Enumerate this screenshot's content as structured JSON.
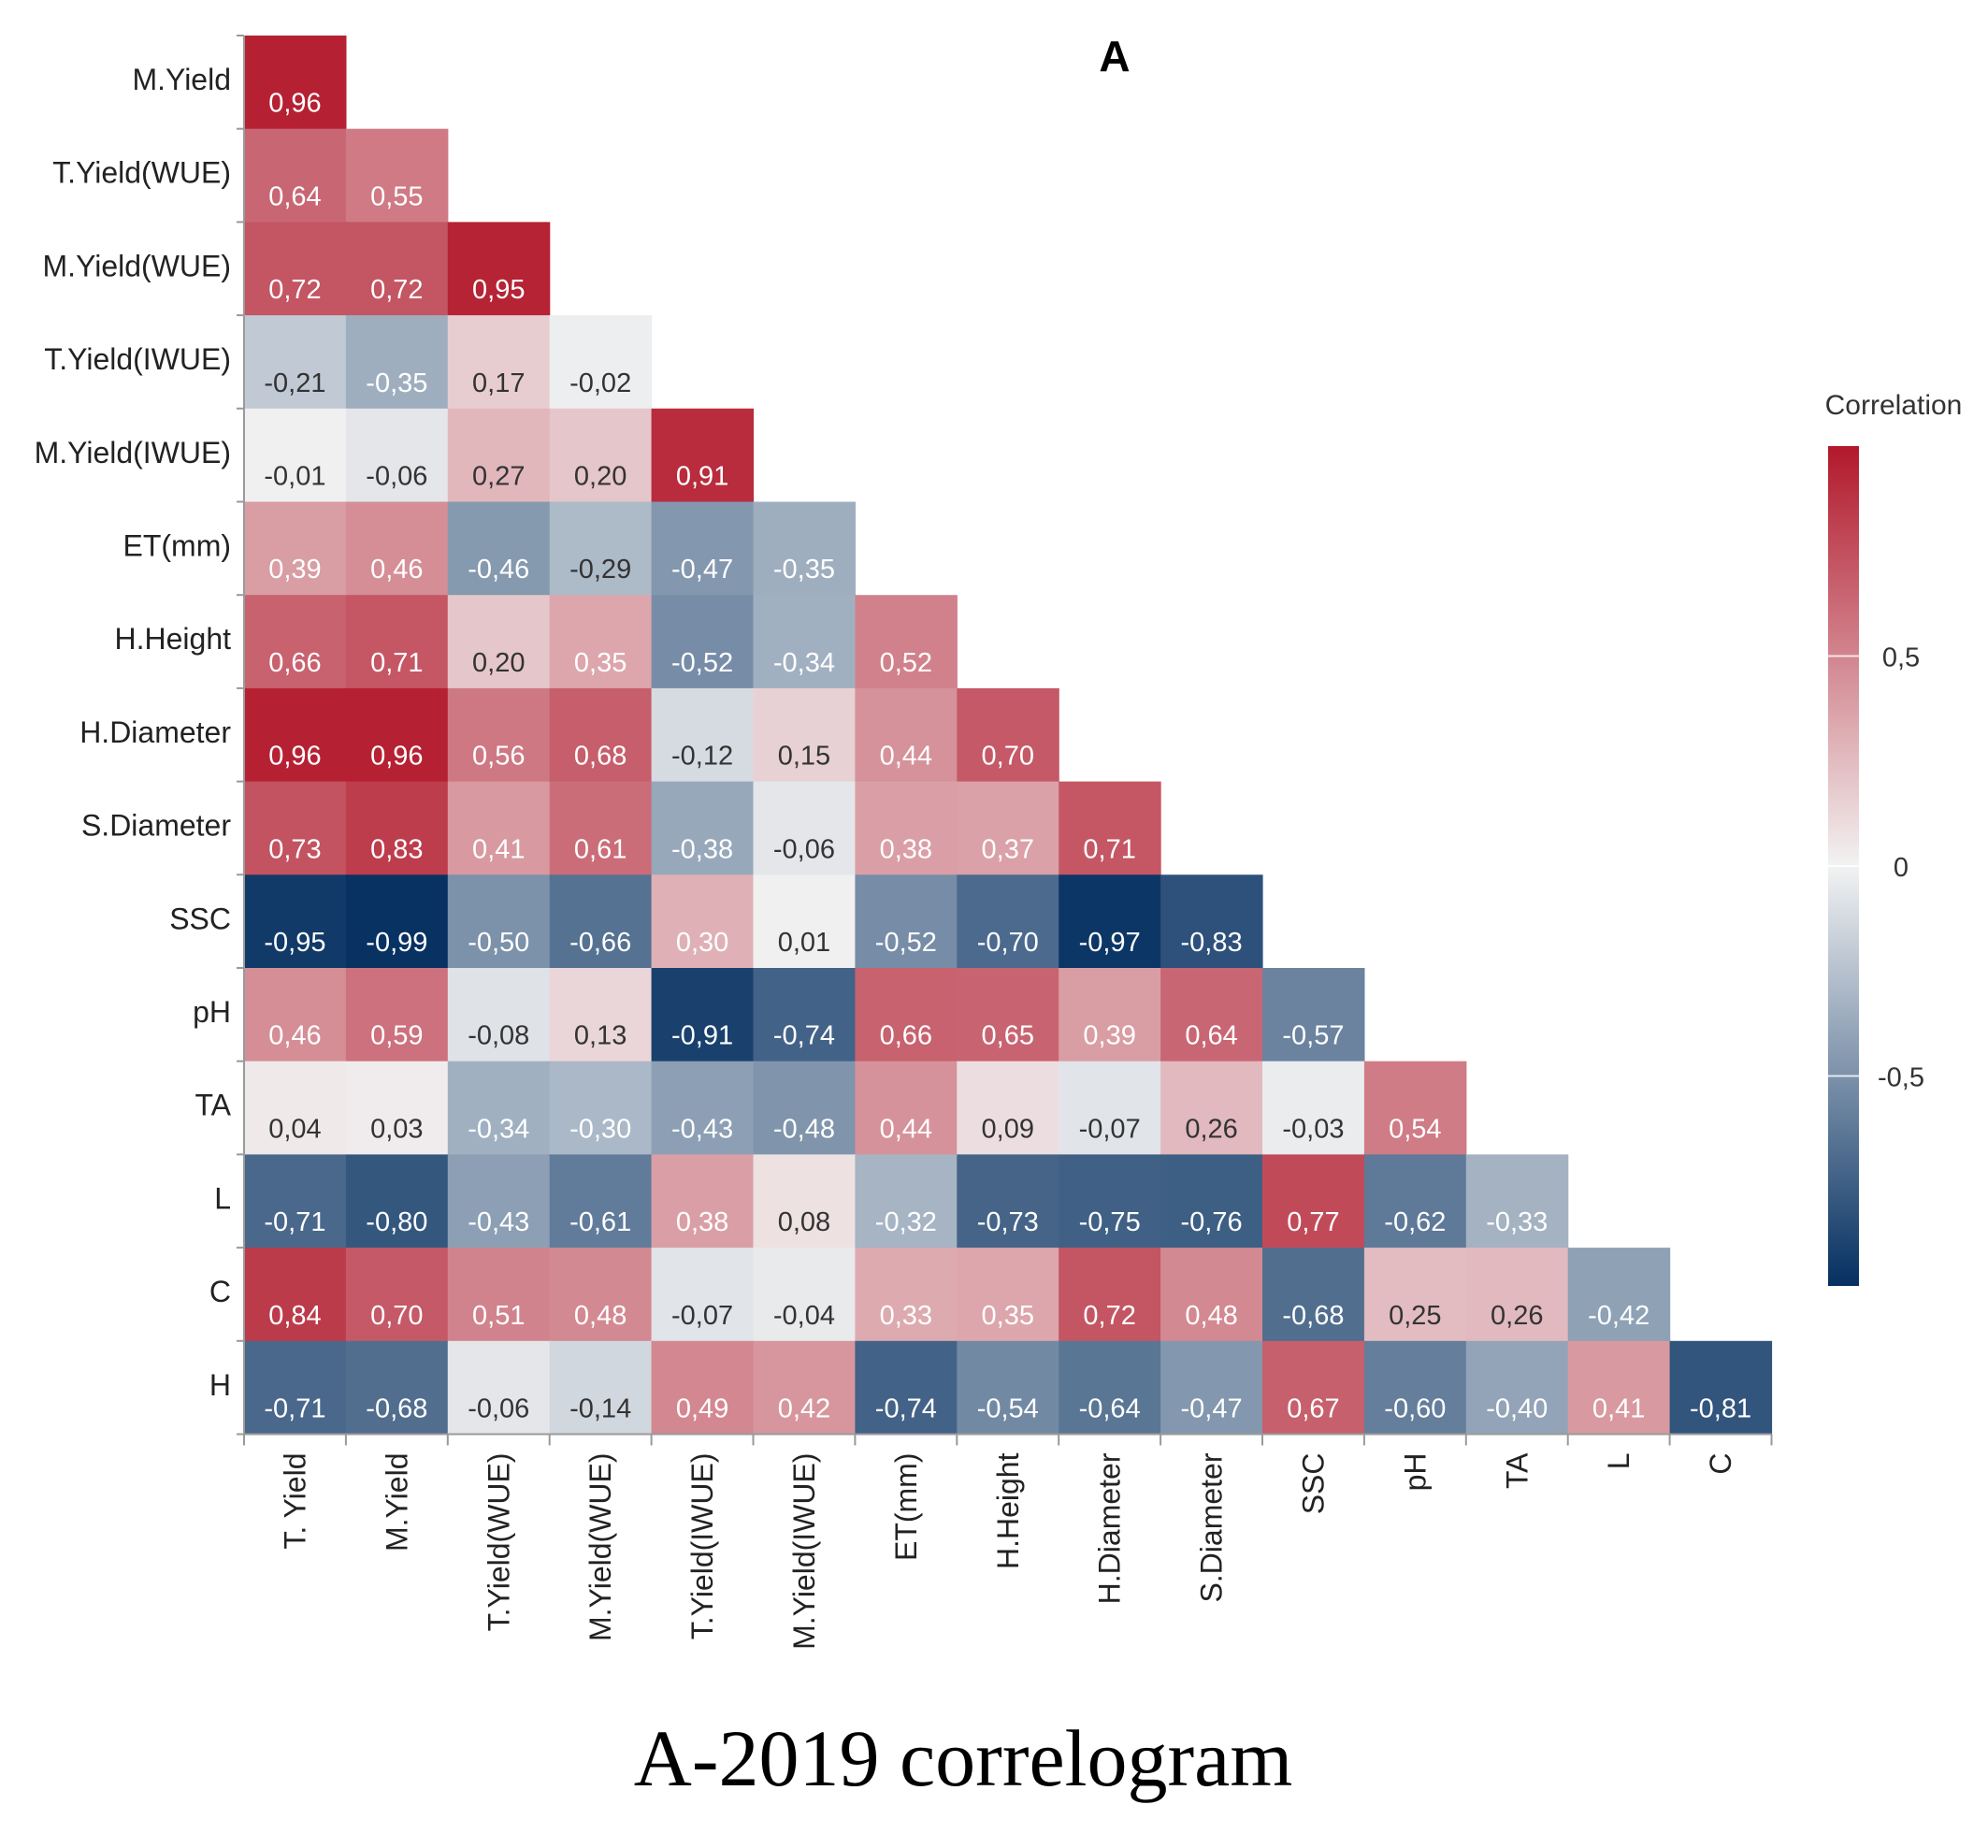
{
  "chart_data": {
    "type": "heatmap",
    "panel_label": "A",
    "legend_title": "Correlation",
    "legend_ticks": [
      "0,5",
      "0",
      "-0,5"
    ],
    "legend_tick_values": [
      0.5,
      0,
      -0.5
    ],
    "colorscale": {
      "min": -1,
      "max": 1,
      "low_color": "#053061",
      "mid_color": "#f2f2f2",
      "high_color": "#b2182b"
    },
    "x_labels": [
      "T. Yield",
      "M.Yield",
      "T.Yield(WUE)",
      "M.Yield(WUE)",
      "T.Yield(IWUE)",
      "M.Yield(IWUE)",
      "ET(mm)",
      "H.Height",
      "H.Diameter",
      "S.Diameter",
      "SSC",
      "pH",
      "TA",
      "L",
      "C"
    ],
    "y_labels": [
      "M.Yield",
      "T.Yield(WUE)",
      "M.Yield(WUE)",
      "T.Yield(IWUE)",
      "M.Yield(IWUE)",
      "ET(mm)",
      "H.Height",
      "H.Diameter",
      "S.Diameter",
      "SSC",
      "pH",
      "TA",
      "L",
      "C",
      "H"
    ],
    "values": [
      [
        0.96
      ],
      [
        0.64,
        0.55
      ],
      [
        0.72,
        0.72,
        0.95
      ],
      [
        -0.21,
        -0.35,
        0.17,
        -0.02
      ],
      [
        -0.01,
        -0.06,
        0.27,
        0.2,
        0.91
      ],
      [
        0.39,
        0.46,
        -0.46,
        -0.29,
        -0.47,
        -0.35
      ],
      [
        0.66,
        0.71,
        0.2,
        0.35,
        -0.52,
        -0.34,
        0.52
      ],
      [
        0.96,
        0.96,
        0.56,
        0.68,
        -0.12,
        0.15,
        0.44,
        0.7
      ],
      [
        0.73,
        0.83,
        0.41,
        0.61,
        -0.38,
        -0.06,
        0.38,
        0.37,
        0.71
      ],
      [
        -0.95,
        -0.99,
        -0.5,
        -0.66,
        0.3,
        0.01,
        -0.52,
        -0.7,
        -0.97,
        -0.83
      ],
      [
        0.46,
        0.59,
        -0.08,
        0.13,
        -0.91,
        -0.74,
        0.66,
        0.65,
        0.39,
        0.64,
        -0.57
      ],
      [
        0.04,
        0.03,
        -0.34,
        -0.3,
        -0.43,
        -0.48,
        0.44,
        0.09,
        -0.07,
        0.26,
        -0.03,
        0.54
      ],
      [
        -0.71,
        -0.8,
        -0.43,
        -0.61,
        0.38,
        0.08,
        -0.32,
        -0.73,
        -0.75,
        -0.76,
        0.77,
        -0.62,
        -0.33
      ],
      [
        0.84,
        0.7,
        0.51,
        0.48,
        -0.07,
        -0.04,
        0.33,
        0.35,
        0.72,
        0.48,
        -0.68,
        0.25,
        0.26,
        -0.42
      ],
      [
        -0.71,
        -0.68,
        -0.06,
        -0.14,
        0.49,
        0.42,
        -0.74,
        -0.54,
        -0.64,
        -0.47,
        0.67,
        -0.6,
        -0.4,
        0.41,
        -0.81
      ]
    ],
    "value_labels": [
      [
        "0,96"
      ],
      [
        "0,64",
        "0,55"
      ],
      [
        "0,72",
        "0,72",
        "0,95"
      ],
      [
        "-0,21",
        "-0,35",
        "0,17",
        "-0,02"
      ],
      [
        "-0,01",
        "-0,06",
        "0,27",
        "0,20",
        "0,91"
      ],
      [
        "0,39",
        "0,46",
        "-0,46",
        "-0,29",
        "-0,47",
        "-0,35"
      ],
      [
        "0,66",
        "0,71",
        "0,20",
        "0,35",
        "-0,52",
        "-0,34",
        "0,52"
      ],
      [
        "0,96",
        "0,96",
        "0,56",
        "0,68",
        "-0,12",
        "0,15",
        "0,44",
        "0,70"
      ],
      [
        "0,73",
        "0,83",
        "0,41",
        "0,61",
        "-0,38",
        "-0,06",
        "0,38",
        "0,37",
        "0,71"
      ],
      [
        "-0,95",
        "-0,99",
        "-0,50",
        "-0,66",
        "0,30",
        "0,01",
        "-0,52",
        "-0,70",
        "-0,97",
        "-0,83"
      ],
      [
        "0,46",
        "0,59",
        "-0,08",
        "0,13",
        "-0,91",
        "-0,74",
        "0,66",
        "0,65",
        "0,39",
        "0,64",
        "-0,57"
      ],
      [
        "0,04",
        "0,03",
        "-0,34",
        "-0,30",
        "-0,43",
        "-0,48",
        "0,44",
        "0,09",
        "-0,07",
        "0,26",
        "-0,03",
        "0,54"
      ],
      [
        "-0,71",
        "-0,80",
        "-0,43",
        "-0,61",
        "0,38",
        "0,08",
        "-0,32",
        "-0,73",
        "-0,75",
        "-0,76",
        "0,77",
        "-0,62",
        "-0,33"
      ],
      [
        "0,84",
        "0,70",
        "0,51",
        "0,48",
        "-0,07",
        "-0,04",
        "0,33",
        "0,35",
        "0,72",
        "0,48",
        "-0,68",
        "0,25",
        "0,26",
        "-0,42"
      ],
      [
        "-0,71",
        "-0,68",
        "-0,06",
        "-0,14",
        "0,49",
        "0,42",
        "-0,74",
        "-0,54",
        "-0,64",
        "-0,47",
        "0,67",
        "-0,60",
        "-0,40",
        "0,41",
        "-0,81"
      ]
    ]
  },
  "caption": "A-2019 correlogram"
}
